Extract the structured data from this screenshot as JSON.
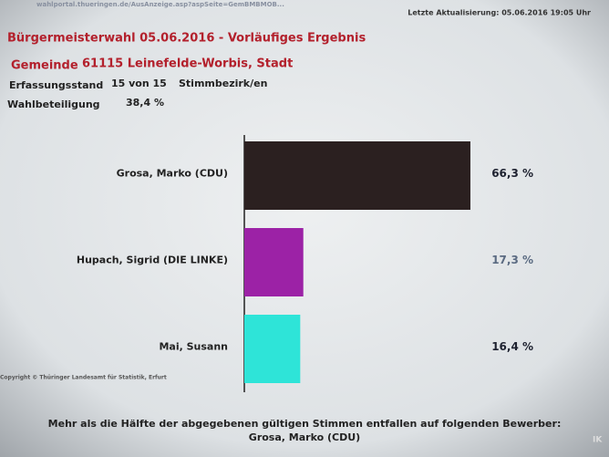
{
  "header": {
    "url": "wahlportal.thueringen.de/AusAnzeige.asp?aspSeite=GemBMBMOB...",
    "updated": "Letzte Aktualisierung:  05.06.2016 19:05 Uhr",
    "municipality_label": "Gemeinde",
    "municipality": "61115 Leinefelde-Worbis, Stadt",
    "status_label": "Erfassungsstand",
    "status": "15 von 15",
    "status_unit": "Stimmbezirk/en",
    "turnout_label": "Wahlbeteiligung",
    "turnout": "38,4 %"
  },
  "chart_data": {
    "type": "bar",
    "orientation": "horizontal",
    "title": "Bürgermeisterwahl 05.06.2016 - Vorläufiges Ergebnis",
    "categories": [
      "Grosa, Marko (CDU)",
      "Hupach, Sigrid (DIE LINKE)",
      "Mai, Susann"
    ],
    "values": [
      66.3,
      17.3,
      16.4
    ],
    "value_labels": [
      "66,3 %",
      "17,3 %",
      "16,4 %"
    ],
    "colors": [
      "#2b2020",
      "#9c22a6",
      "#2ee4d8"
    ]
  },
  "footer": {
    "copyright": "Copyright © Thüringer Landesamt für Statistik, Erfurt",
    "note": "Mehr als die Hälfte der abgegebenen gültigen Stimmen entfallen auf folgenden Bewerber:",
    "winner": "Grosa, Marko (CDU)",
    "watermark": "IK"
  }
}
